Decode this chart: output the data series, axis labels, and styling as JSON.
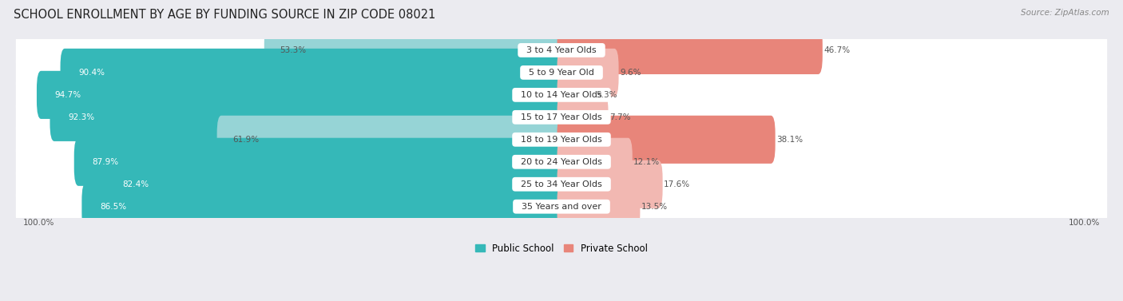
{
  "title": "SCHOOL ENROLLMENT BY AGE BY FUNDING SOURCE IN ZIP CODE 08021",
  "source": "Source: ZipAtlas.com",
  "categories": [
    "3 to 4 Year Olds",
    "5 to 9 Year Old",
    "10 to 14 Year Olds",
    "15 to 17 Year Olds",
    "18 to 19 Year Olds",
    "20 to 24 Year Olds",
    "25 to 34 Year Olds",
    "35 Years and over"
  ],
  "public_pct": [
    53.3,
    90.4,
    94.7,
    92.3,
    61.9,
    87.9,
    82.4,
    86.5
  ],
  "private_pct": [
    46.7,
    9.6,
    5.3,
    7.7,
    38.1,
    12.1,
    17.6,
    13.5
  ],
  "public_color_strong": "#35b8b8",
  "public_color_light": "#96d4d6",
  "private_color_strong": "#e8857a",
  "private_color_light": "#f2b8b2",
  "bg_color": "#ebebf0",
  "row_bg": "#ffffff",
  "title_fontsize": 10.5,
  "label_fontsize": 8.0,
  "pct_fontsize": 7.5,
  "tick_fontsize": 7.5,
  "legend_fontsize": 8.5,
  "x_left_label": "100.0%",
  "x_right_label": "100.0%",
  "strong_pub_threshold": 70,
  "strong_priv_threshold": 30
}
